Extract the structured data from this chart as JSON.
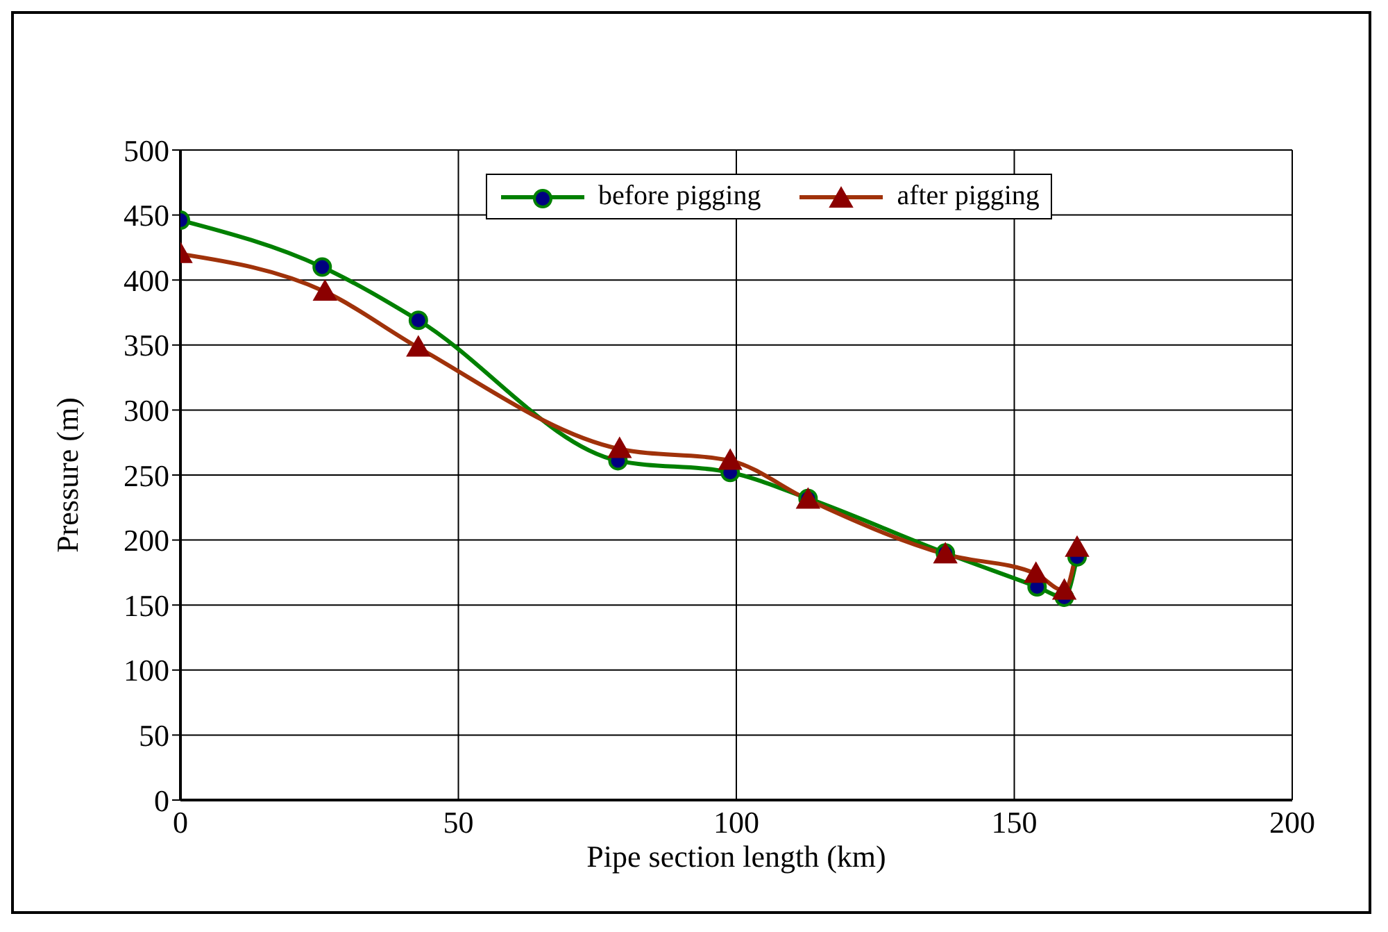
{
  "chart_data": {
    "type": "line",
    "xlabel": "Pipe section length (km)",
    "ylabel": "Pressure (m)",
    "xlim": [
      0,
      200
    ],
    "xticks": [
      0,
      50,
      100,
      150,
      200
    ],
    "ylim": [
      0,
      500
    ],
    "yticks": [
      0,
      50,
      100,
      150,
      200,
      250,
      300,
      350,
      400,
      450,
      500
    ],
    "grid": true,
    "legend": "top",
    "line_style": "solid",
    "series": [
      {
        "name": "before pigging",
        "color": "#008000",
        "marker": "circle",
        "x": [
          0,
          25.5,
          42.8,
          78.7,
          98.9,
          112.9,
          137.6,
          154.1,
          159,
          161.3
        ],
        "values": [
          446,
          410,
          369,
          261,
          252,
          232,
          190,
          164,
          156,
          187
        ]
      },
      {
        "name": "after pigging",
        "color": "#a0320a",
        "marker": "triangle",
        "x": [
          0,
          26,
          42.8,
          79,
          98.9,
          112.9,
          137.6,
          153.9,
          159,
          161.3
        ],
        "values": [
          420,
          391,
          348,
          270,
          261,
          231,
          189,
          174,
          161,
          194
        ]
      }
    ]
  }
}
